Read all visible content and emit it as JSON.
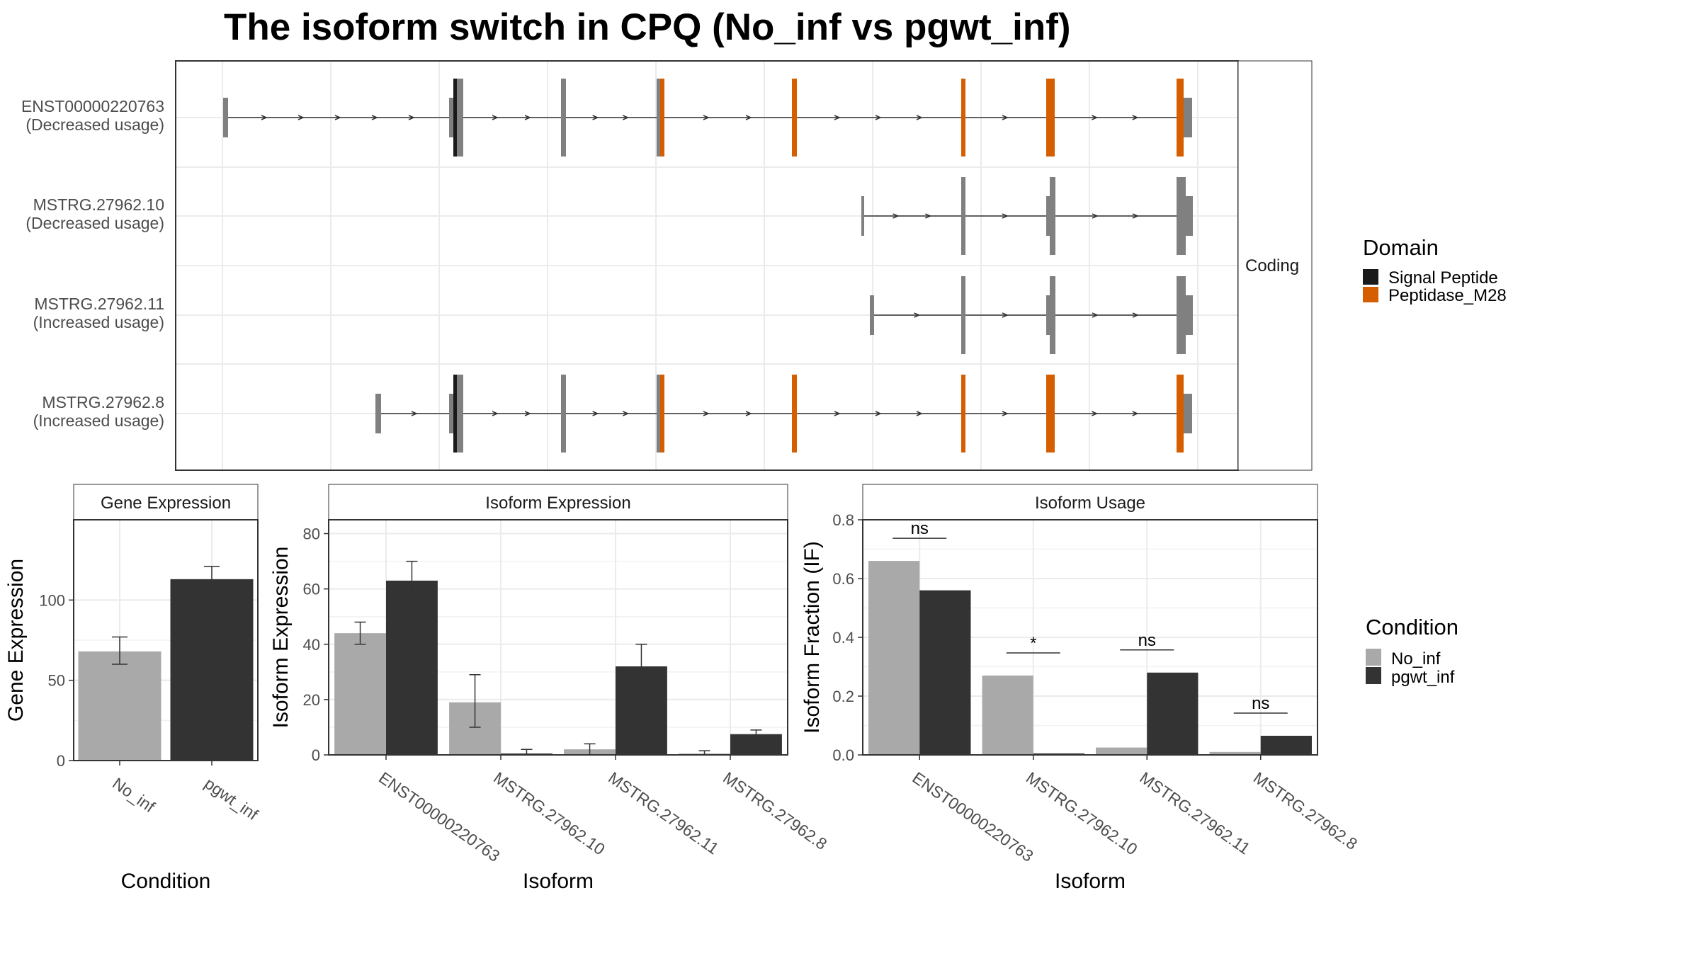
{
  "title": "The isoform switch in CPQ (No_inf vs pgwt_inf)",
  "colors": {
    "signal_peptide": "#1a1a1a",
    "peptidase": "#d55e00",
    "exon": "#808080",
    "no_inf": "#a9a9a9",
    "pgwt_inf": "#333333",
    "grid": "#ebebeb",
    "panel_border": "#333333"
  },
  "transcript_panel": {
    "strip_label": "Coding",
    "isoforms": [
      {
        "name": "ENST00000220763",
        "usage": "(Decreased usage)"
      },
      {
        "name": "MSTRG.27962.10",
        "usage": "(Decreased usage)"
      },
      {
        "name": "MSTRG.27962.11",
        "usage": "(Increased usage)"
      },
      {
        "name": "MSTRG.27962.8",
        "usage": "(Increased usage)"
      }
    ]
  },
  "domain_legend": {
    "title": "Domain",
    "items": [
      {
        "label": "Signal Peptide",
        "color": "#1a1a1a"
      },
      {
        "label": "Peptidase_M28",
        "color": "#d55e00"
      }
    ]
  },
  "condition_legend": {
    "title": "Condition",
    "items": [
      {
        "label": "No_inf",
        "color": "#a9a9a9"
      },
      {
        "label": "pgwt_inf",
        "color": "#333333"
      }
    ]
  },
  "chart_data": [
    {
      "type": "bar",
      "title": "Gene Expression",
      "xlabel": "Condition",
      "ylabel": "Gene Expression",
      "categories": [
        "No_inf",
        "pgwt_inf"
      ],
      "values": [
        68,
        113
      ],
      "errors": [
        [
          60,
          77
        ],
        [
          106,
          121
        ]
      ],
      "ylim": [
        0,
        150
      ],
      "yticks": [
        0,
        50,
        100
      ]
    },
    {
      "type": "bar",
      "title": "Isoform Expression",
      "xlabel": "Isoform",
      "ylabel": "Isoform Expression",
      "categories": [
        "ENST00000220763",
        "MSTRG.27962.10",
        "MSTRG.27962.11",
        "MSTRG.27962.8"
      ],
      "series": [
        {
          "name": "No_inf",
          "values": [
            44,
            19,
            2,
            0.5
          ],
          "errors": [
            [
              40,
              48
            ],
            [
              10,
              29
            ],
            [
              0,
              4
            ],
            [
              0,
              1.5
            ]
          ]
        },
        {
          "name": "pgwt_inf",
          "values": [
            63,
            0.5,
            32,
            7.5
          ],
          "errors": [
            [
              56,
              70
            ],
            [
              0,
              2
            ],
            [
              24,
              40
            ],
            [
              6,
              9
            ]
          ]
        }
      ],
      "ylim": [
        0,
        85
      ],
      "yticks": [
        0,
        20,
        40,
        60,
        80
      ]
    },
    {
      "type": "bar",
      "title": "Isoform Usage",
      "xlabel": "Isoform",
      "ylabel": "Isoform Fraction (IF)",
      "categories": [
        "ENST00000220763",
        "MSTRG.27962.10",
        "MSTRG.27962.11",
        "MSTRG.27962.8"
      ],
      "series": [
        {
          "name": "No_inf",
          "values": [
            0.66,
            0.27,
            0.025,
            0.01
          ]
        },
        {
          "name": "pgwt_inf",
          "values": [
            0.56,
            0.005,
            0.28,
            0.065
          ]
        }
      ],
      "significance": [
        "ns",
        "*",
        "ns",
        "ns"
      ],
      "ylim": [
        0,
        0.8
      ],
      "yticks": [
        "0.0",
        "0.2",
        "0.4",
        "0.6",
        "0.8"
      ]
    }
  ]
}
